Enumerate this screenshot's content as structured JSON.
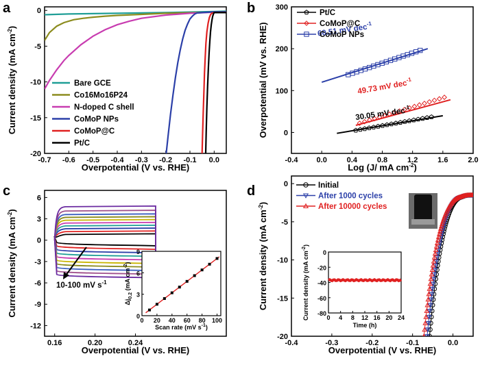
{
  "chart_data": [
    {
      "panel": "a",
      "type": "line",
      "xlabel": "Overpotential (V vs. RHE)",
      "ylabel": "Current density (mA cm",
      "ylabel_sup": "-2",
      "ylabel_end": ")",
      "xlim": [
        -0.7,
        0.05
      ],
      "ylim": [
        -20,
        0.5
      ],
      "xticks": [
        -0.7,
        -0.6,
        -0.5,
        -0.4,
        -0.3,
        -0.2,
        -0.1,
        0.0
      ],
      "xtick_labels": [
        "-0.7",
        "-0.6",
        "-0.5",
        "-0.4",
        "-0.3",
        "-0.2",
        "-0.1",
        "0.0"
      ],
      "yticks": [
        -20,
        -15,
        -10,
        -5,
        0
      ],
      "legend_position": "bottom-left",
      "series": [
        {
          "name": "Bare GCE",
          "color": "#1f9e96",
          "x": [
            -0.7,
            -0.6,
            -0.4,
            -0.2,
            0.0,
            0.05
          ],
          "y": [
            -0.6,
            -0.5,
            -0.4,
            -0.3,
            -0.15,
            -0.1
          ]
        },
        {
          "name": "Co16Mo16P24",
          "color": "#8c8c1e",
          "x": [
            -0.7,
            -0.68,
            -0.65,
            -0.62,
            -0.58,
            -0.54,
            -0.5,
            -0.45,
            -0.4,
            -0.3,
            -0.2,
            0.0,
            0.05
          ],
          "y": [
            -4.2,
            -3.1,
            -2.2,
            -1.7,
            -1.3,
            -1.1,
            -0.95,
            -0.8,
            -0.7,
            -0.55,
            -0.4,
            -0.25,
            -0.2
          ]
        },
        {
          "name": "N-doped C shell",
          "color": "#c83cb0",
          "x": [
            -0.7,
            -0.68,
            -0.65,
            -0.62,
            -0.6,
            -0.55,
            -0.5,
            -0.45,
            -0.4,
            -0.35,
            -0.3,
            -0.2,
            -0.1,
            0.0,
            0.05
          ],
          "y": [
            -11.0,
            -9.8,
            -8.3,
            -7.0,
            -6.3,
            -4.8,
            -3.6,
            -2.7,
            -2.0,
            -1.5,
            -1.1,
            -0.65,
            -0.4,
            -0.25,
            -0.2
          ]
        },
        {
          "name": "CoMoP NPs",
          "color": "#2b3fa8",
          "x": [
            -0.198,
            -0.19,
            -0.18,
            -0.17,
            -0.16,
            -0.15,
            -0.14,
            -0.13,
            -0.12,
            -0.11,
            -0.1,
            -0.09,
            -0.08,
            -0.07,
            -0.05,
            0.0,
            0.05
          ],
          "y": [
            -20,
            -17.5,
            -14.5,
            -11.8,
            -9.4,
            -7.3,
            -5.5,
            -4.0,
            -2.8,
            -1.9,
            -1.2,
            -0.8,
            -0.5,
            -0.35,
            -0.3,
            -0.2,
            -0.2
          ]
        },
        {
          "name": "CoMoP@C",
          "color": "#e02020",
          "x": [
            -0.05,
            -0.048,
            -0.045,
            -0.042,
            -0.04,
            -0.037,
            -0.034,
            -0.03,
            -0.025,
            -0.02,
            -0.015,
            -0.01,
            0.0,
            0.05
          ],
          "y": [
            -20,
            -17.5,
            -14.2,
            -11.0,
            -8.8,
            -6.5,
            -4.6,
            -3.0,
            -1.8,
            -1.0,
            -0.6,
            -0.4,
            -0.3,
            -0.3
          ]
        },
        {
          "name": "Pt/C",
          "color": "#000000",
          "x": [
            -0.035,
            -0.033,
            -0.03,
            -0.027,
            -0.024,
            -0.021,
            -0.018,
            -0.015,
            -0.012,
            -0.009,
            -0.006,
            -0.003,
            0.0,
            0.05
          ],
          "y": [
            -20,
            -17.0,
            -13.5,
            -10.5,
            -8.0,
            -6.0,
            -4.3,
            -3.0,
            -2.0,
            -1.3,
            -0.8,
            -0.5,
            -0.3,
            -0.3
          ]
        }
      ]
    },
    {
      "panel": "b",
      "type": "scatter",
      "xlabel": "Log (J/ mA cm",
      "xlabel_sup": "-2",
      "xlabel_end": ")",
      "ylabel": "Overpotential (mV vs. RHE)",
      "xlim": [
        -0.4,
        2.0
      ],
      "ylim": [
        -50,
        300
      ],
      "xticks": [
        -0.4,
        0.0,
        0.4,
        0.8,
        1.2,
        1.6,
        2.0
      ],
      "xtick_labels": [
        "-0.4",
        "0.0",
        "0.4",
        "0.8",
        "1.2",
        "1.6",
        "2.0"
      ],
      "yticks": [
        0,
        100,
        200,
        300
      ],
      "legend_position": "top-left",
      "series": [
        {
          "name": "Pt/C",
          "color": "#000000",
          "marker": "pentagon",
          "fit_x": [
            0.2,
            1.6
          ],
          "fit_y": [
            -2,
            40
          ],
          "data_x": [
            0.45,
            1.45
          ],
          "data_y": [
            5,
            37
          ],
          "annotation": "30.05 mV dec",
          "annotation_sup": "-1"
        },
        {
          "name": "CoMoP@C",
          "color": "#e02020",
          "marker": "diamond",
          "fit_x": [
            0.45,
            1.7
          ],
          "fit_y": [
            17,
            78
          ],
          "data_x": [
            0.5,
            1.62
          ],
          "data_y": [
            22,
            84
          ],
          "annotation": "49.73 mV dec",
          "annotation_sup": "-1"
        },
        {
          "name": "CoMoP NPs",
          "color": "#2b3fa8",
          "marker": "square",
          "fit_x": [
            0.0,
            1.4
          ],
          "fit_y": [
            120,
            200
          ],
          "data_x": [
            0.35,
            1.3
          ],
          "data_y": [
            138,
            196
          ],
          "annotation": "60.51 mV dec",
          "annotation_sup": "-1"
        }
      ]
    },
    {
      "panel": "c",
      "type": "line",
      "xlabel": "Overpotential (V vs. RHE)",
      "ylabel": "Current density (mA cm",
      "ylabel_sup": "-2",
      "ylabel_end": ")",
      "xlim": [
        0.15,
        0.33
      ],
      "ylim": [
        -13.5,
        7
      ],
      "xticks": [
        0.16,
        0.2,
        0.24
      ],
      "xtick_labels": [
        "0.16",
        "0.20",
        "0.24"
      ],
      "yticks": [
        -12,
        -9,
        -6,
        -3,
        0,
        3,
        6
      ],
      "cv_x_range": [
        0.16,
        0.26
      ],
      "cv_scan_rates": [
        10,
        20,
        30,
        40,
        50,
        60,
        70,
        80,
        90,
        100
      ],
      "cv_top_current": [
        0.9,
        1.3,
        1.7,
        2.1,
        2.5,
        2.9,
        3.3,
        3.7,
        4.2,
        4.8
      ],
      "cv_bottom_current": [
        -0.7,
        -1.2,
        -1.7,
        -2.2,
        -2.7,
        -3.2,
        -3.7,
        -4.2,
        -4.7,
        -5.2
      ],
      "cv_colors": [
        "#000000",
        "#e02020",
        "#2b3fa8",
        "#1f9e96",
        "#c83cb0",
        "#c8b400",
        "#8c8c1e",
        "#3a5fc0",
        "#a0508c",
        "#6a2aa0"
      ],
      "annotation": "10-100 mV s",
      "annotation_sup": "-1",
      "inset": {
        "type": "scatter",
        "xlabel": "Scan rate (mV s",
        "xlabel_sup": "-1",
        "xlabel_end": ")",
        "ylabel": "Δj",
        "ylabel_sub": "0.2",
        "ylabel_unit": " (mA cm",
        "ylabel_sup": "-2",
        "ylabel_end": ")",
        "xlim": [
          0,
          105
        ],
        "ylim": [
          0,
          9
        ],
        "xticks": [
          0,
          20,
          40,
          60,
          80,
          100
        ],
        "yticks": [
          0,
          3,
          6,
          9
        ],
        "x": [
          10,
          20,
          30,
          40,
          50,
          60,
          70,
          80,
          90,
          100
        ],
        "y": [
          0.8,
          1.6,
          2.4,
          3.2,
          4.0,
          4.8,
          5.6,
          6.4,
          7.2,
          8.0
        ],
        "fit_color": "#e02020"
      }
    },
    {
      "panel": "d",
      "type": "scatter",
      "xlabel": "Overpotential (V vs. RHE)",
      "ylabel": "Current density (mA cm",
      "ylabel_sup": "-2",
      "ylabel_end": ")",
      "xlim": [
        -0.4,
        0.05
      ],
      "ylim": [
        -20,
        1
      ],
      "xticks": [
        -0.4,
        -0.3,
        -0.2,
        -0.1,
        0.0
      ],
      "xtick_labels": [
        "-0.4",
        "-0.3",
        "-0.2",
        "-0.1",
        "0.0"
      ],
      "yticks": [
        -20,
        -15,
        -10,
        -5,
        0
      ],
      "legend_position": "top-left",
      "series": [
        {
          "name": "Initial",
          "color": "#000000",
          "marker": "circle",
          "onset": -0.058
        },
        {
          "name": "After 1000 cycles",
          "color": "#2b3fa8",
          "marker": "triangle-down",
          "onset": -0.064
        },
        {
          "name": "After 10000 cycles",
          "color": "#e02020",
          "marker": "triangle-up",
          "onset": -0.072
        }
      ],
      "inset": {
        "type": "line",
        "xlabel": "Time (h)",
        "ylabel": "Current density (mA cm",
        "ylabel_sup": "-2",
        "ylabel_end": ")",
        "xlim": [
          0,
          24
        ],
        "ylim": [
          -80,
          0
        ],
        "xticks": [
          0,
          4,
          8,
          12,
          16,
          20,
          24
        ],
        "yticks": [
          0,
          -20,
          -40,
          -60,
          -80
        ],
        "level": -37,
        "color": "#e02020"
      }
    }
  ],
  "panel_labels": [
    "a",
    "b",
    "c",
    "d"
  ]
}
